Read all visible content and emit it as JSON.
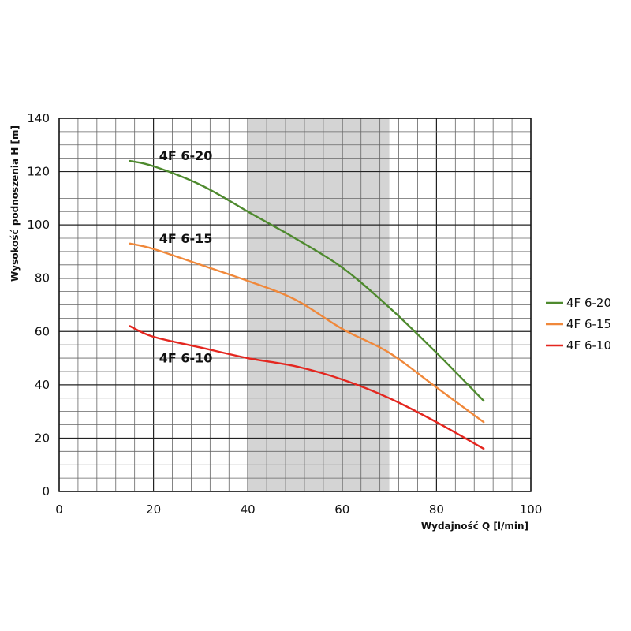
{
  "chart_data": {
    "type": "line",
    "title": "",
    "xlabel": "Wydajność Q [l/min]",
    "ylabel": "Wysokość podnoszenia H [m]",
    "xlim": [
      0,
      100
    ],
    "ylim": [
      0,
      140
    ],
    "x_ticks": [
      "0",
      "20",
      "40",
      "60",
      "80",
      "100"
    ],
    "y_ticks": [
      "0",
      "20",
      "40",
      "60",
      "80",
      "100",
      "120",
      "140"
    ],
    "grid": true,
    "highlight_band": {
      "x_from": 40,
      "x_to": 70,
      "color": "#d4d4d4"
    },
    "legend_position": "right",
    "series": [
      {
        "name": "4F 6-20",
        "color": "#4e8a2e",
        "x": [
          15,
          20,
          30,
          40,
          45,
          50,
          60,
          70,
          80,
          90
        ],
        "y": [
          124,
          122,
          115,
          105,
          100,
          95,
          84,
          69,
          52,
          34
        ]
      },
      {
        "name": "4F 6-15",
        "color": "#f0883a",
        "x": [
          15,
          20,
          30,
          40,
          50,
          60,
          70,
          80,
          90
        ],
        "y": [
          93,
          91,
          85,
          79,
          72,
          61,
          52,
          39,
          26
        ]
      },
      {
        "name": "4F 6-10",
        "color": "#e4261f",
        "x": [
          15,
          20,
          30,
          40,
          50,
          60,
          70,
          80,
          90
        ],
        "y": [
          62,
          58,
          54,
          50,
          47,
          42,
          35,
          26,
          16
        ]
      }
    ],
    "annotations": [
      "4F 6-20",
      "4F 6-15",
      "4F 6-10"
    ]
  }
}
